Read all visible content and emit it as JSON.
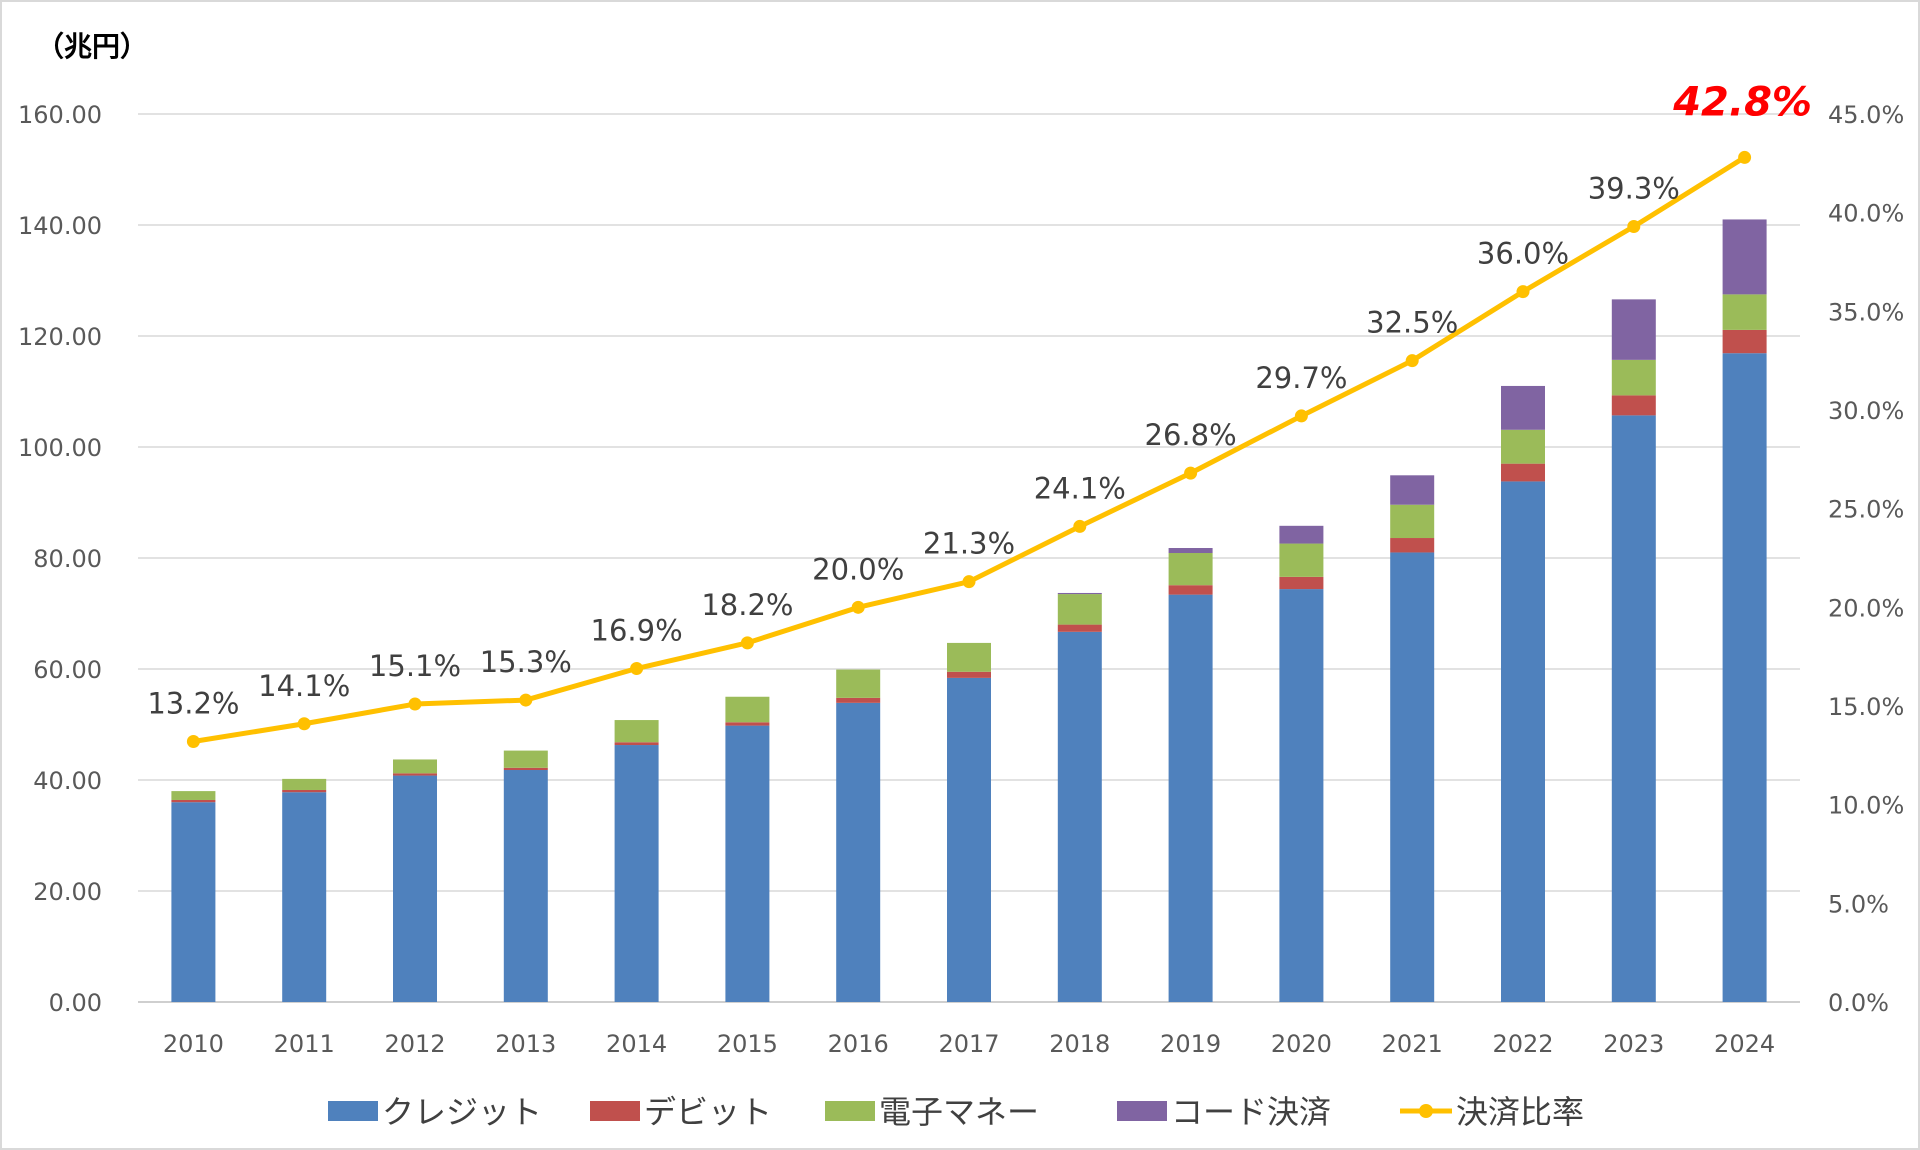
{
  "chart_data": {
    "type": "bar",
    "stacked": true,
    "unit_label": "（兆円）",
    "categories": [
      "2010",
      "2011",
      "2012",
      "2013",
      "2014",
      "2015",
      "2016",
      "2017",
      "2018",
      "2019",
      "2020",
      "2021",
      "2022",
      "2023",
      "2024"
    ],
    "y_left": {
      "min": 0,
      "max": 160,
      "step": 20,
      "tick_labels": [
        "0.00",
        "20.00",
        "40.00",
        "60.00",
        "80.00",
        "100.00",
        "120.00",
        "140.00",
        "160.00"
      ]
    },
    "y_right": {
      "min": 0,
      "max": 45,
      "step": 5,
      "tick_labels": [
        "0.0%",
        "5.0%",
        "10.0%",
        "15.0%",
        "20.0%",
        "25.0%",
        "30.0%",
        "35.0%",
        "40.0%",
        "45.0%"
      ]
    },
    "grid": true,
    "legend_position": "bottom",
    "series": [
      {
        "name": "クレジット",
        "color": "#4f81bd",
        "values": [
          36.0,
          37.8,
          40.8,
          41.8,
          46.3,
          49.8,
          53.9,
          58.4,
          66.7,
          73.4,
          74.4,
          81.0,
          93.8,
          105.7,
          116.9
        ]
      },
      {
        "name": "デビット",
        "color": "#c0504d",
        "values": [
          0.4,
          0.4,
          0.4,
          0.4,
          0.5,
          0.6,
          0.9,
          1.1,
          1.3,
          1.7,
          2.2,
          2.6,
          3.2,
          3.6,
          4.2
        ]
      },
      {
        "name": "電子マネー",
        "color": "#9bbb59",
        "values": [
          1.6,
          2.0,
          2.5,
          3.1,
          4.0,
          4.6,
          5.1,
          5.2,
          5.5,
          5.8,
          6.0,
          6.0,
          6.1,
          6.4,
          6.4
        ]
      },
      {
        "name": "コード決済",
        "color": "#8064a2",
        "values": [
          0,
          0,
          0,
          0,
          0,
          0,
          0,
          0,
          0.2,
          0.9,
          3.2,
          5.3,
          7.9,
          10.9,
          13.5
        ]
      }
    ],
    "line": {
      "name": "決済比率",
      "color": "#ffc000",
      "axis": "right",
      "values": [
        13.2,
        14.1,
        15.1,
        15.3,
        16.9,
        18.2,
        20.0,
        21.3,
        24.1,
        26.8,
        29.7,
        32.5,
        36.0,
        39.3,
        42.8
      ],
      "data_labels": [
        "13.2%",
        "14.1%",
        "15.1%",
        "15.3%",
        "16.9%",
        "18.2%",
        "20.0%",
        "21.3%",
        "24.1%",
        "26.8%",
        "29.7%",
        "32.5%",
        "36.0%",
        "39.3%",
        "42.8%"
      ],
      "highlight_color": "#ff0000"
    }
  }
}
